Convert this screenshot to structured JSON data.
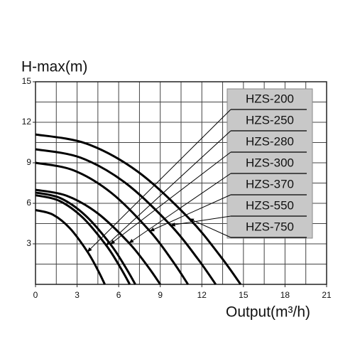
{
  "chart_data": {
    "type": "line",
    "y_label": "H-max(m)",
    "x_label": "Output(m³/h)",
    "xlim": [
      0,
      21
    ],
    "ylim": [
      0,
      15
    ],
    "xticks": [
      0,
      3,
      6,
      9,
      12,
      15,
      18,
      21
    ],
    "yticks": [
      3,
      6,
      9,
      12,
      15
    ],
    "xgrid": [
      1.5,
      3,
      4.5,
      6,
      7.5,
      9,
      10.5,
      12,
      13.5,
      15,
      16.5,
      18,
      19.5
    ],
    "ygrid": [
      1.5,
      3,
      4.5,
      6,
      7.5,
      9,
      10.5,
      12,
      13.5
    ],
    "series": [
      {
        "name": "HZS-200",
        "color": "#000000",
        "x": [
          0,
          1.25,
          2.5,
          3.75,
          4.5,
          5
        ],
        "values": [
          5.5,
          5.16,
          4.13,
          2.41,
          1.05,
          0
        ]
      },
      {
        "name": "HZS-250",
        "color": "#000000",
        "x": [
          0,
          1.7,
          3.4,
          5.1,
          6.12,
          6.8
        ],
        "values": [
          6.6,
          6.19,
          4.95,
          2.89,
          1.25,
          0
        ]
      },
      {
        "name": "HZS-280",
        "color": "#000000",
        "x": [
          0,
          1.8,
          3.6,
          5.4,
          6.48,
          7.2
        ],
        "values": [
          6.8,
          6.38,
          5.1,
          2.98,
          1.29,
          0
        ]
      },
      {
        "name": "HZS-300",
        "color": "#000000",
        "x": [
          0,
          2.25,
          4.5,
          6.75,
          8.1,
          9
        ],
        "values": [
          7,
          6.56,
          5.25,
          3.06,
          1.33,
          0
        ]
      },
      {
        "name": "HZS-370",
        "color": "#000000",
        "x": [
          0,
          2.75,
          5.5,
          8.25,
          9.9,
          11
        ],
        "values": [
          9,
          8.44,
          6.75,
          3.94,
          1.71,
          0
        ]
      },
      {
        "name": "HZS-550",
        "color": "#000000",
        "x": [
          0,
          3.25,
          6.5,
          9.75,
          11.7,
          13
        ],
        "values": [
          10,
          9.38,
          7.5,
          4.38,
          1.9,
          0
        ]
      },
      {
        "name": "HZS-750",
        "color": "#000000",
        "x": [
          0,
          3.7,
          7.4,
          11.1,
          13.32,
          14.8
        ],
        "values": [
          11.1,
          10.41,
          8.33,
          4.86,
          2.11,
          0
        ]
      }
    ]
  }
}
